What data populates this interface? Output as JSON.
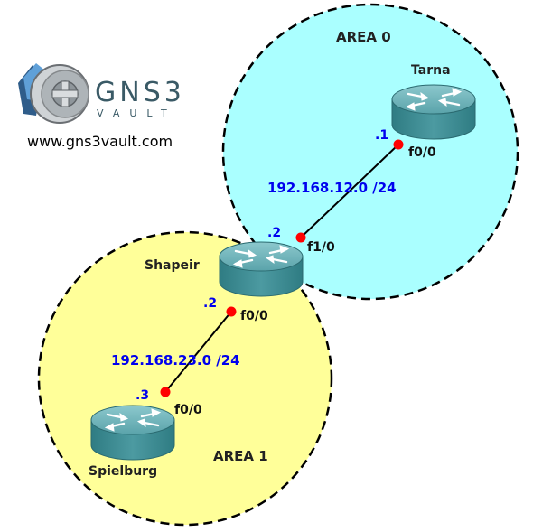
{
  "logo": {
    "brand": "GNS3",
    "sub": "VAULT",
    "url": "www.gns3vault.com"
  },
  "areas": [
    {
      "id": "area0",
      "label": "AREA 0",
      "fill": "#aaffff"
    },
    {
      "id": "area1",
      "label": "AREA 1",
      "fill": "#ffff99"
    }
  ],
  "routers": [
    {
      "id": "tarna",
      "name": "Tarna"
    },
    {
      "id": "shapeir",
      "name": "Shapeir"
    },
    {
      "id": "spielburg",
      "name": "Spielburg"
    }
  ],
  "links": [
    {
      "id": "tarna-shapeir",
      "network": "192.168.12.0 /24",
      "end_a": {
        "router": "tarna",
        "octet": ".1",
        "interface": "f0/0"
      },
      "end_b": {
        "router": "shapeir",
        "octet": ".2",
        "interface": "f1/0"
      }
    },
    {
      "id": "shapeir-spielburg",
      "network": "192.168.23.0 /24",
      "end_a": {
        "router": "shapeir",
        "octet": ".2",
        "interface": "f0/0"
      },
      "end_b": {
        "router": "spielburg",
        "octet": ".3",
        "interface": "f0/0"
      }
    }
  ],
  "colors": {
    "router_top": "#6fb1b8",
    "router_body": "#3e8c93",
    "interface_dot": "#ff0000",
    "link": "#000000",
    "ip_text": "#0000ee"
  }
}
